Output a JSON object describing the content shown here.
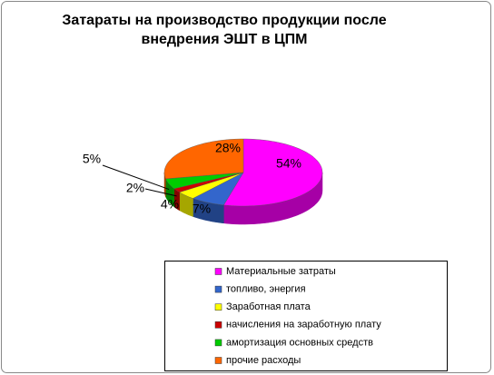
{
  "chart_data": {
    "type": "pie3d",
    "title": "Затараты на производство продукции после внедрения ЭШТ в ЦПМ",
    "categories": [
      "Материальные затраты",
      "топливо, энергия",
      "Заработная плата",
      "начисления на заработную плату",
      "амортизация основных средств",
      "прочие расходы"
    ],
    "values": [
      54,
      7,
      4,
      2,
      5,
      28
    ],
    "value_labels": [
      "54%",
      "7%",
      "4%",
      "2%",
      "5%",
      "28%"
    ],
    "colors": [
      "#ff00ff",
      "#3366cc",
      "#ffff00",
      "#cc0000",
      "#00cc00",
      "#ff6600"
    ],
    "legend": "bottom"
  }
}
